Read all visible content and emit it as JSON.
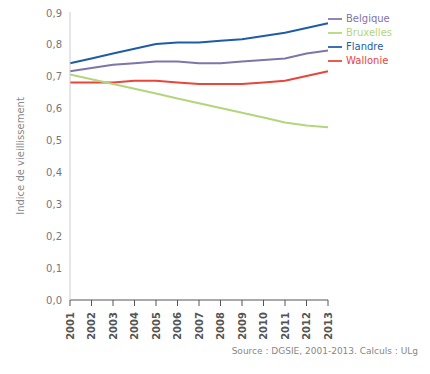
{
  "chart_data": {
    "type": "line",
    "y_label": "Indice de vieillissement",
    "source": "Source : DGSIE, 2001-2013. Calculs : ULg",
    "categories": [
      "2001",
      "2002",
      "2003",
      "2004",
      "2005",
      "2006",
      "2007",
      "2008",
      "2009",
      "2010",
      "2011",
      "2012",
      "2013"
    ],
    "series": [
      {
        "name": "Flandre",
        "color": "#1f5ca6",
        "values": [
          0.74,
          0.755,
          0.77,
          0.785,
          0.8,
          0.805,
          0.805,
          0.81,
          0.815,
          0.825,
          0.835,
          0.85,
          0.865
        ]
      },
      {
        "name": "Belgique",
        "color": "#7e75a9",
        "values": [
          0.715,
          0.725,
          0.735,
          0.74,
          0.745,
          0.745,
          0.74,
          0.74,
          0.745,
          0.75,
          0.755,
          0.77,
          0.78
        ]
      },
      {
        "name": "Wallonie",
        "color": "#e8453b",
        "values": [
          0.68,
          0.68,
          0.68,
          0.685,
          0.685,
          0.68,
          0.675,
          0.675,
          0.675,
          0.68,
          0.685,
          0.7,
          0.715
        ]
      },
      {
        "name": "Bruxelles",
        "color": "#b3d67c",
        "values": [
          0.705,
          0.69,
          0.675,
          0.66,
          0.645,
          0.63,
          0.615,
          0.6,
          0.585,
          0.57,
          0.555,
          0.545,
          0.54
        ]
      }
    ],
    "ylim": [
      0,
      0.9
    ],
    "yticks": [
      {
        "value": 0,
        "label": "0,0"
      },
      {
        "value": 0.1,
        "label": "0,1"
      },
      {
        "value": 0.2,
        "label": "0,2"
      },
      {
        "value": 0.3,
        "label": "0,3"
      },
      {
        "value": 0.4,
        "label": "0,4"
      },
      {
        "value": 0.5,
        "label": "0,5"
      },
      {
        "value": 0.6,
        "label": "0,6"
      },
      {
        "value": 0.7,
        "label": "0,7"
      },
      {
        "value": 0.8,
        "label": "0,8"
      },
      {
        "value": 0.9,
        "label": "0,9"
      }
    ],
    "grid": false,
    "legend": "top-right"
  }
}
